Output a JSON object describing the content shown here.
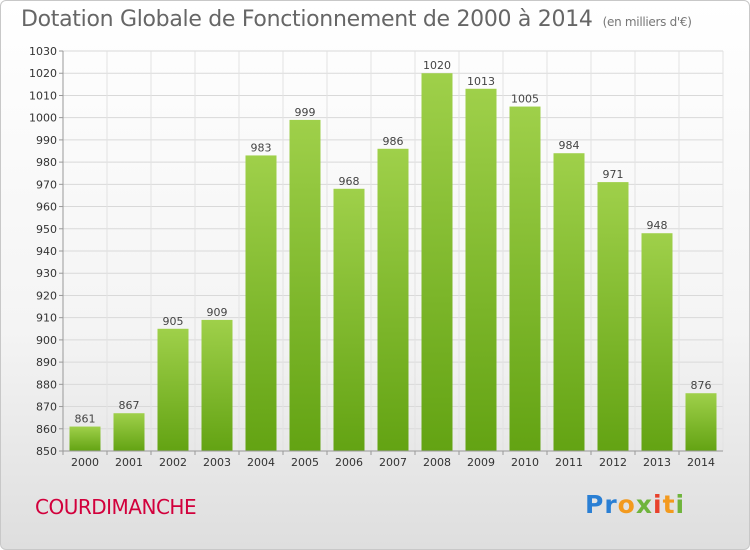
{
  "header": {
    "title": "Dotation Globale de Fonctionnement de 2000 à 2014",
    "unit": "(en milliers d'€)"
  },
  "footer": {
    "town": "COURDIMANCHE",
    "logo": "Proxiti"
  },
  "colors": {
    "bar_top": "#9fd04a",
    "bar_bottom": "#63a313",
    "town": "#d2003c"
  },
  "chart_data": {
    "type": "bar",
    "title": "Dotation Globale de Fonctionnement de 2000 à 2014",
    "subtitle": "(en milliers d'€)",
    "categories": [
      "2000",
      "2001",
      "2002",
      "2003",
      "2004",
      "2005",
      "2006",
      "2007",
      "2008",
      "2009",
      "2010",
      "2011",
      "2012",
      "2013",
      "2014"
    ],
    "values": [
      861,
      867,
      905,
      909,
      983,
      999,
      968,
      986,
      1020,
      1013,
      1005,
      984,
      971,
      948,
      876
    ],
    "xlabel": "",
    "ylabel": "",
    "ylim": [
      850,
      1030
    ],
    "ytick_step": 10,
    "grid": true,
    "legend": "none"
  }
}
